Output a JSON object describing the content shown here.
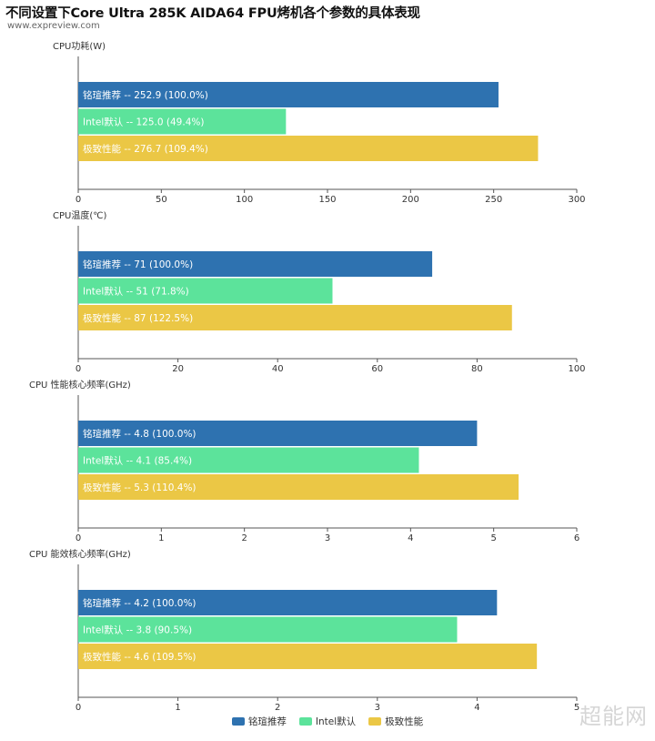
{
  "header": {
    "title": "不同设置下Core Ultra 285K AIDA64 FPU烤机各个参数的具体表现",
    "source": "www.expreview.com"
  },
  "colors": {
    "series": [
      "#2e72b0",
      "#5ce39b",
      "#ebc745"
    ]
  },
  "legend": [
    "铭瑄推荐",
    "Intel默认",
    "极致性能"
  ],
  "watermark": "超能网",
  "chart_data": [
    {
      "type": "bar",
      "orientation": "horizontal",
      "title": "CPU功耗(W)",
      "categories": [
        "铭瑄推荐",
        "Intel默认",
        "极致性能"
      ],
      "values": [
        252.9,
        125.0,
        276.7
      ],
      "labels": [
        "铭瑄推荐 -- 252.9 (100.0%)",
        "Intel默认 -- 125.0 (49.4%)",
        "极致性能 -- 276.7 (109.4%)"
      ],
      "xlim": [
        0,
        300
      ],
      "ticks": [
        "0",
        "50",
        "100",
        "150",
        "200",
        "250",
        "300"
      ]
    },
    {
      "type": "bar",
      "orientation": "horizontal",
      "title": "CPU温度(℃)",
      "categories": [
        "铭瑄推荐",
        "Intel默认",
        "极致性能"
      ],
      "values": [
        71,
        51,
        87
      ],
      "labels": [
        "铭瑄推荐 -- 71 (100.0%)",
        "Intel默认 -- 51 (71.8%)",
        "极致性能 -- 87 (122.5%)"
      ],
      "xlim": [
        0,
        100
      ],
      "ticks": [
        "0",
        "20",
        "40",
        "60",
        "80",
        "100"
      ]
    },
    {
      "type": "bar",
      "orientation": "horizontal",
      "title": "CPU 性能核心频率(GHz)",
      "categories": [
        "铭瑄推荐",
        "Intel默认",
        "极致性能"
      ],
      "values": [
        4.8,
        4.1,
        5.3
      ],
      "labels": [
        "铭瑄推荐 -- 4.8 (100.0%)",
        "Intel默认 -- 4.1 (85.4%)",
        "极致性能 -- 5.3 (110.4%)"
      ],
      "xlim": [
        0,
        6
      ],
      "ticks": [
        "0",
        "1",
        "2",
        "3",
        "4",
        "5",
        "6"
      ]
    },
    {
      "type": "bar",
      "orientation": "horizontal",
      "title": "CPU 能效核心频率(GHz)",
      "categories": [
        "铭瑄推荐",
        "Intel默认",
        "极致性能"
      ],
      "values": [
        4.2,
        3.8,
        4.6
      ],
      "labels": [
        "铭瑄推荐 -- 4.2 (100.0%)",
        "Intel默认 -- 3.8 (90.5%)",
        "极致性能 -- 4.6 (109.5%)"
      ],
      "xlim": [
        0,
        5
      ],
      "ticks": [
        "0",
        "1",
        "2",
        "3",
        "4",
        "5"
      ]
    }
  ]
}
